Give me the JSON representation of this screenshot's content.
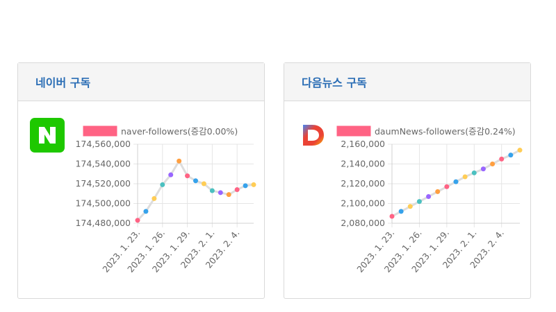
{
  "cards": [
    {
      "title": "네이버 구독",
      "logo_icon": "naver-logo",
      "chart_data": {
        "type": "line",
        "legend": "naver-followers(증감0.00%)",
        "legend_color": "#ff6384",
        "line_color": "#dddddd",
        "x_ticks": [
          "2023. 1. 23.",
          "2023. 1. 26.",
          "2023. 1. 29.",
          "2023. 2. 1.",
          "2023. 2. 4."
        ],
        "y_ticks": [
          "174,560,000",
          "174,540,000",
          "174,520,000",
          "174,500,000",
          "174,480,000"
        ],
        "ylim": [
          174480000,
          174560000
        ],
        "x_start": "2023-01-23",
        "y": [
          174483000,
          174492000,
          174505000,
          174519000,
          174529000,
          174543000,
          174528000,
          174523000,
          174520000,
          174513000,
          174511000,
          174509000,
          174514000,
          174518000,
          174519000
        ]
      }
    },
    {
      "title": "다음뉴스 구독",
      "logo_icon": "daum-logo",
      "chart_data": {
        "type": "line",
        "legend": "daumNews-followers(증감0.24%)",
        "legend_color": "#ff6384",
        "line_color": "#dddddd",
        "x_ticks": [
          "2023. 1. 23.",
          "2023. 1. 26.",
          "2023. 1. 29.",
          "2023. 2. 1.",
          "2023. 2. 4."
        ],
        "y_ticks": [
          "2,160,000",
          "2,140,000",
          "2,120,000",
          "2,100,000",
          "2,080,000"
        ],
        "ylim": [
          2080000,
          2160000
        ],
        "x_start": "2023-01-23",
        "y": [
          2087000,
          2092000,
          2097000,
          2102000,
          2107000,
          2112000,
          2117000,
          2122000,
          2127000,
          2131000,
          2135000,
          2140000,
          2145000,
          2149000,
          2154000
        ]
      }
    }
  ],
  "point_colors": [
    "#ff6384",
    "#36a2eb",
    "#ffcd56",
    "#4bc0c0",
    "#9966ff",
    "#ff9f40",
    "#ff6384",
    "#36a2eb",
    "#ffcd56",
    "#4bc0c0",
    "#9966ff",
    "#ff9f40",
    "#ff6384",
    "#36a2eb",
    "#ffcd56"
  ]
}
